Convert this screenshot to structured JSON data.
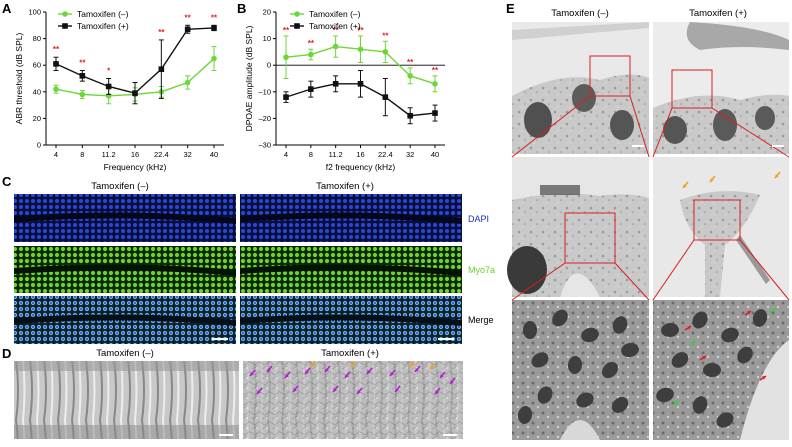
{
  "panels": {
    "A": "A",
    "B": "B",
    "C": "C",
    "D": "D",
    "E": "E"
  },
  "groups": {
    "neg": "Tamoxifen (–)",
    "pos": "Tamoxifen (+)"
  },
  "colors": {
    "neg": "#6dd63a",
    "pos": "#111111",
    "sig": "#e02020",
    "dapi": "#1a33b5",
    "myo7a": "#6fcf2a",
    "zoom": "#d81e1e",
    "arrow_magenta": "#b020d0",
    "arrow_orange": "#f0a020"
  },
  "stains": {
    "dapi": "DAPI",
    "myo7a": "Myo7a",
    "merge": "Merge"
  },
  "chart_data": [
    {
      "type": "line",
      "ylabel": "ABR threshold (dB SPL)",
      "xlabel": "Frequency (kHz)",
      "x": [
        "4",
        "8",
        "11.2",
        "16",
        "22.4",
        "32",
        "40"
      ],
      "ylim": [
        0,
        100
      ],
      "yticks": [
        "0",
        "20",
        "40",
        "60",
        "80",
        "100"
      ],
      "series": [
        {
          "name": "Tamoxifen (–)",
          "values": [
            42,
            38,
            37,
            38,
            40,
            47,
            65
          ],
          "err": [
            3,
            3,
            6,
            5,
            4,
            5,
            9
          ]
        },
        {
          "name": "Tamoxifen (+)",
          "values": [
            61,
            52,
            44,
            39,
            57,
            87,
            88
          ],
          "err": [
            5,
            4,
            6,
            8,
            22,
            3,
            2
          ]
        }
      ],
      "significance": [
        "**",
        "**",
        "*",
        "",
        "**",
        "**",
        "**"
      ],
      "legend": "top-left"
    },
    {
      "type": "line",
      "ylabel": "DPOAE amplitude (dB SPL)",
      "xlabel": "f2 frequency (kHz)",
      "x": [
        "4",
        "8",
        "11.2",
        "16",
        "22.4",
        "32",
        "40"
      ],
      "ylim": [
        -30,
        20
      ],
      "yticks": [
        "–30",
        "–20",
        "–10",
        "0",
        "10",
        "20"
      ],
      "series": [
        {
          "name": "Tamoxifen (–)",
          "values": [
            3,
            4,
            7,
            6,
            5,
            -4,
            -7
          ],
          "err": [
            8,
            2,
            4,
            5,
            4,
            3,
            3
          ]
        },
        {
          "name": "Tamoxifen (+)",
          "values": [
            -12,
            -9,
            -7,
            -7,
            -12,
            -19,
            -18
          ],
          "err": [
            2,
            3,
            3,
            5,
            7,
            3,
            3
          ]
        }
      ],
      "significance": [
        "**",
        "**",
        "**",
        "**",
        "**",
        "**",
        "**"
      ],
      "legend": "top-right"
    }
  ]
}
